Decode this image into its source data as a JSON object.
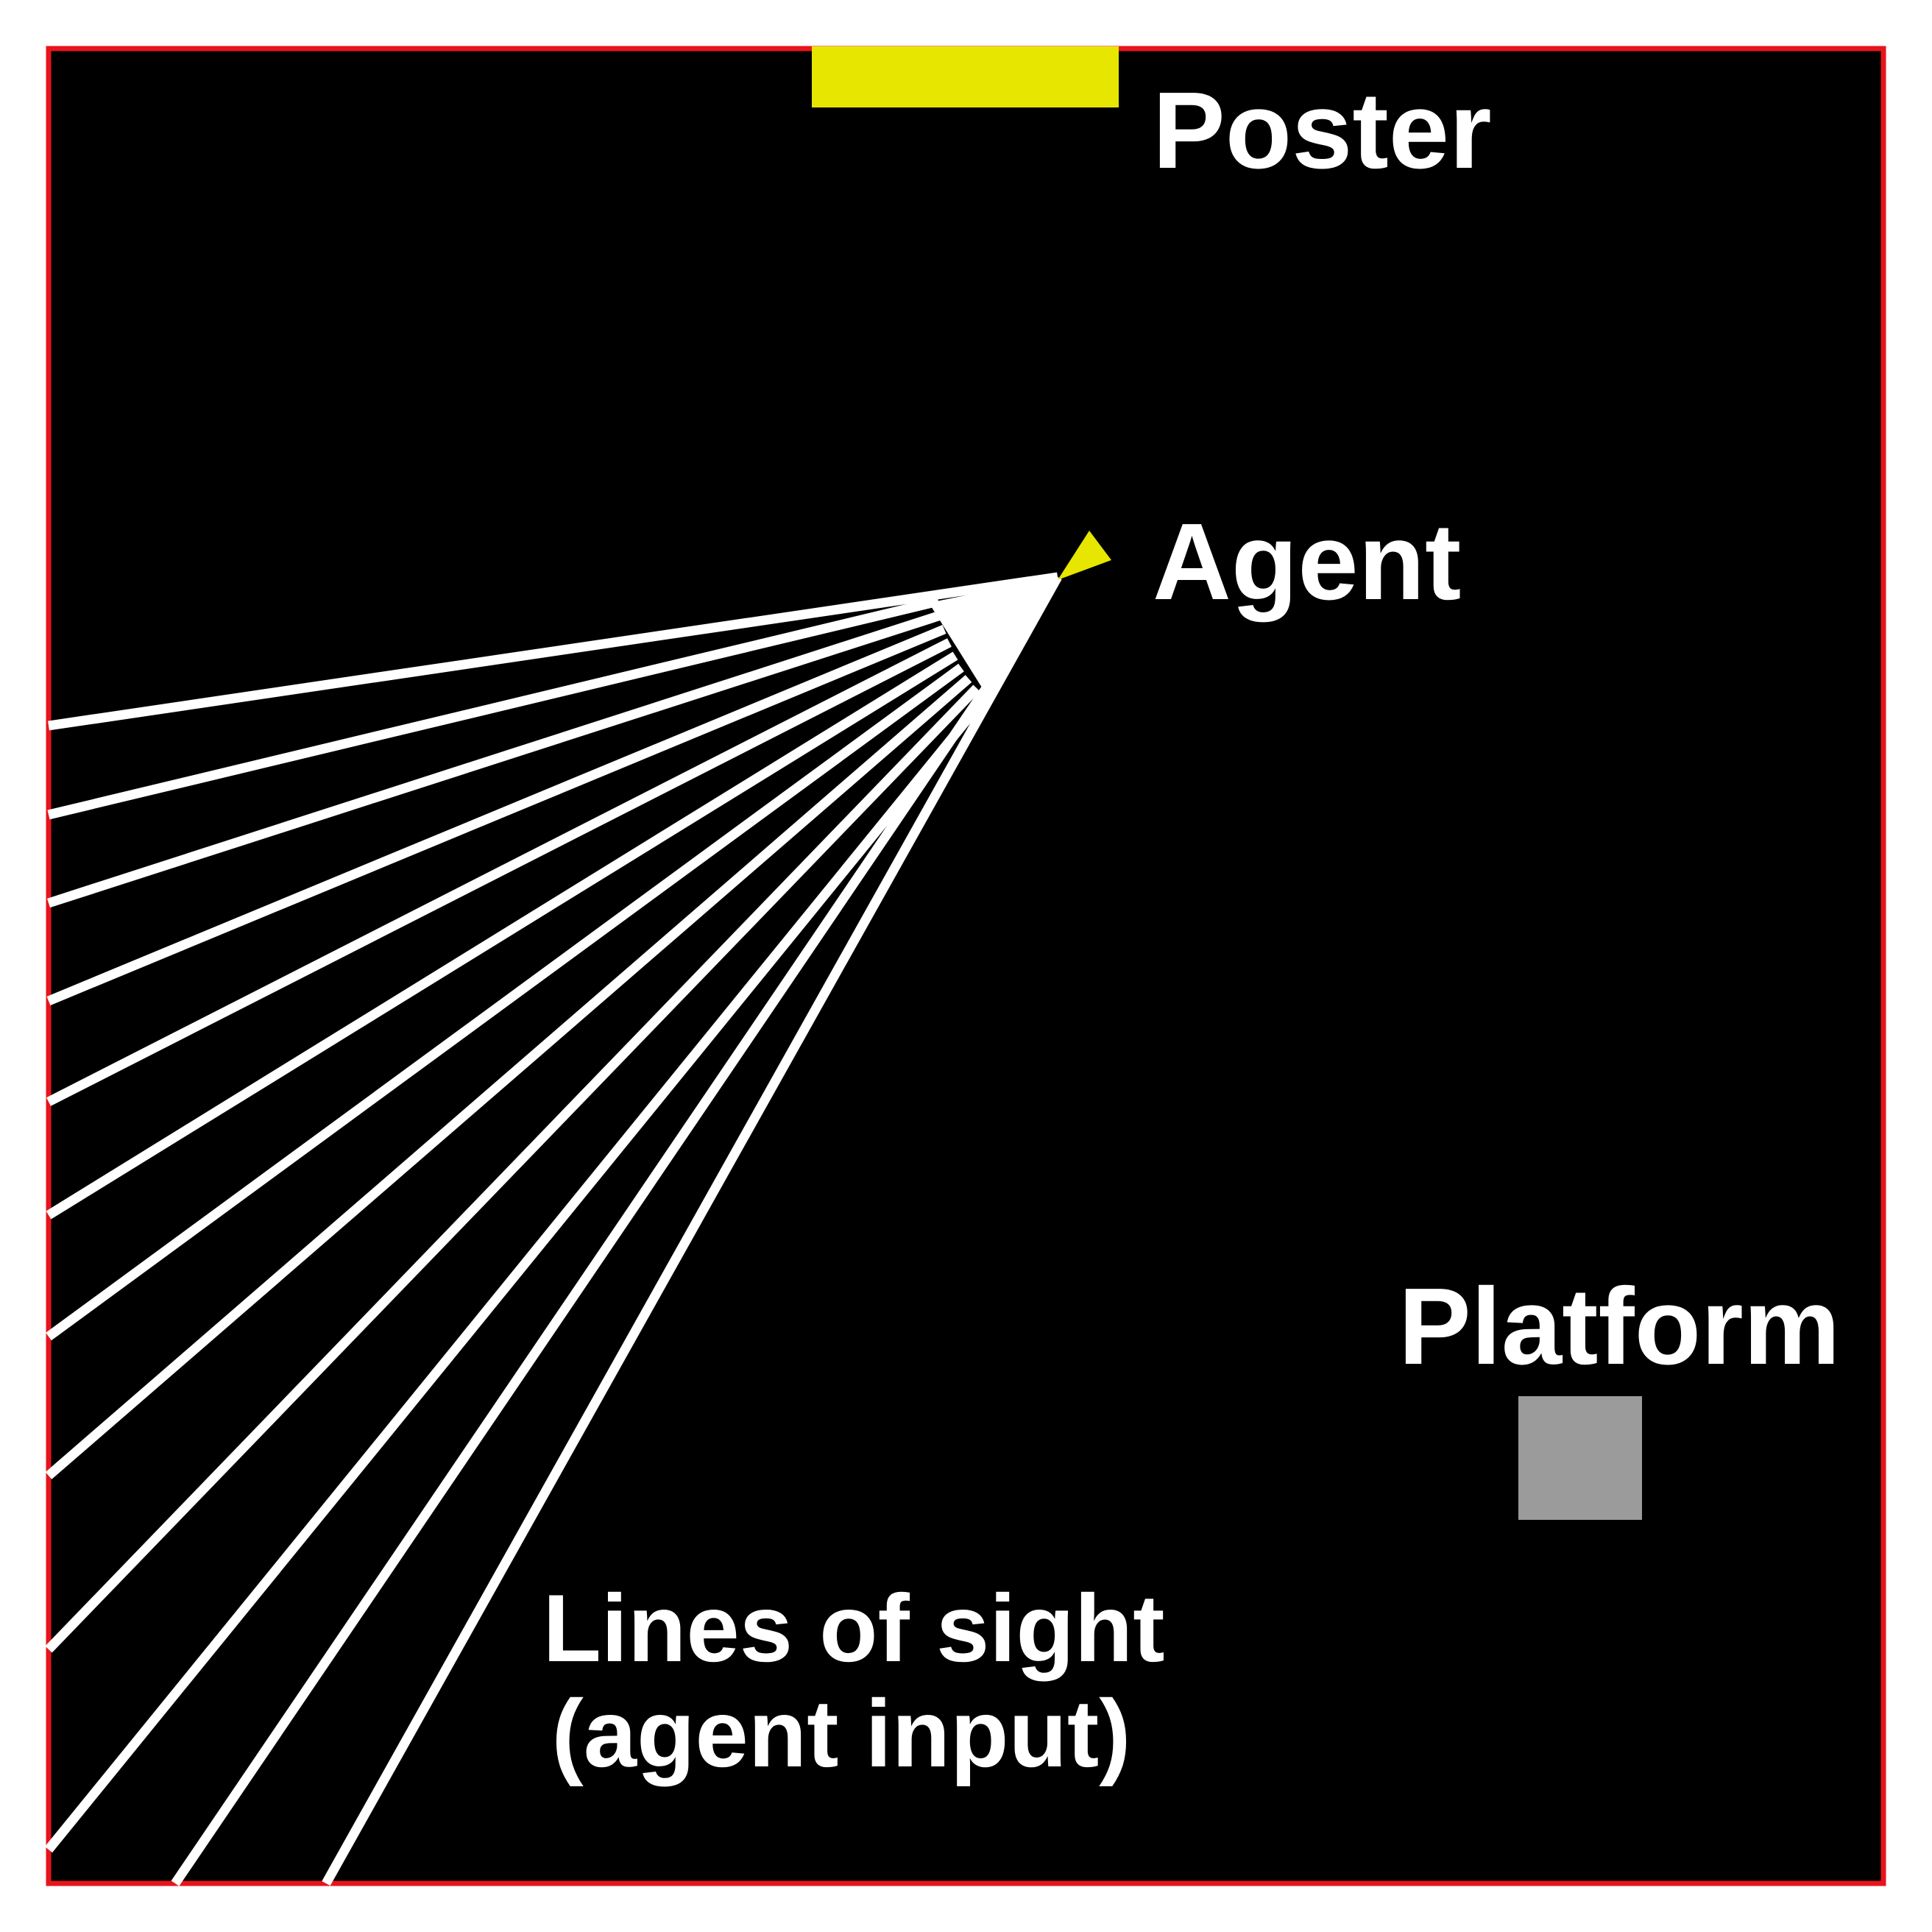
{
  "colors": {
    "background": "#000000",
    "border": "#e8141c",
    "poster": "#e6e600",
    "agent": "#e6e600",
    "platform": "#9b9b9b",
    "sight_lines": "#ffffff",
    "text": "#ffffff"
  },
  "labels": {
    "poster": "Poster",
    "agent": "Agent",
    "platform": "Platform",
    "sight_line1": "Lines of sight",
    "sight_line2": "(agent input)"
  },
  "icons": {
    "agent": "triangle-agent-icon"
  },
  "sight_lines": {
    "count": 14
  }
}
